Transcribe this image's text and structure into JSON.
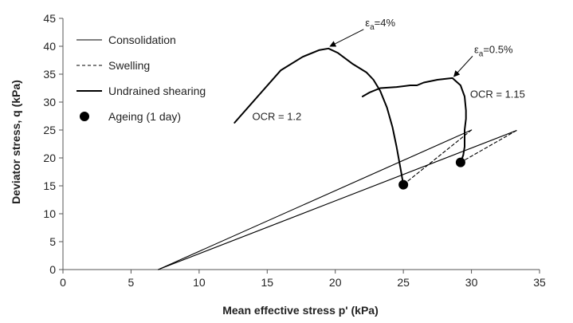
{
  "chart_data": {
    "type": "line",
    "xlabel": "Mean effective stress p' (kPa)",
    "ylabel": "Deviator stress, q (kPa)",
    "xlim": [
      0,
      35
    ],
    "ylim": [
      0,
      45
    ],
    "xticks": [
      0,
      5,
      10,
      15,
      20,
      25,
      30,
      35
    ],
    "yticks": [
      0,
      5,
      10,
      15,
      20,
      25,
      30,
      35,
      40,
      45
    ],
    "grid": false,
    "legend_position": "top-left",
    "legend": [
      {
        "label": "Consolidation",
        "style": "solid-thin"
      },
      {
        "label": "Swelling",
        "style": "dashed"
      },
      {
        "label": "Undrained shearing",
        "style": "solid-thick"
      },
      {
        "label": "Ageing (1 day)",
        "style": "marker"
      }
    ],
    "series": [
      {
        "name": "Consolidation 1",
        "style": "solid-thin",
        "x": [
          7.0,
          30.0
        ],
        "y": [
          0,
          25.0
        ]
      },
      {
        "name": "Consolidation 2",
        "style": "solid-thin",
        "x": [
          7.0,
          33.3
        ],
        "y": [
          0,
          24.9
        ]
      },
      {
        "name": "Swelling 1",
        "style": "dashed",
        "x": [
          30.0,
          25.0
        ],
        "y": [
          25.0,
          15.2
        ]
      },
      {
        "name": "Swelling 2",
        "style": "dashed",
        "x": [
          33.3,
          29.2
        ],
        "y": [
          24.9,
          19.2
        ]
      },
      {
        "name": "Undrained shearing OCR 1.2",
        "style": "solid-thick",
        "x": [
          25.0,
          24.8,
          24.5,
          24.2,
          23.8,
          23.3,
          22.8,
          22.3,
          21.3,
          20.2,
          19.5,
          18.8,
          17.6,
          16.0,
          14.3,
          12.6
        ],
        "y": [
          15.2,
          18.0,
          22.0,
          25.5,
          29.0,
          32.0,
          34.0,
          35.3,
          36.8,
          38.8,
          39.6,
          39.3,
          38.1,
          35.7,
          31.0,
          26.3
        ]
      },
      {
        "name": "Undrained shearing OCR 1.15",
        "style": "solid-thick",
        "x": [
          29.2,
          29.4,
          29.5,
          29.5,
          29.6,
          29.6,
          29.5,
          29.2,
          28.6,
          27.5,
          26.5,
          26.0,
          25.5,
          24.5,
          23.3,
          22.5,
          22.0
        ],
        "y": [
          19.2,
          20.5,
          22.0,
          25.0,
          27.0,
          28.5,
          31.0,
          33.0,
          34.3,
          34.0,
          33.5,
          33.0,
          33.0,
          32.7,
          32.5,
          31.7,
          31.0
        ]
      }
    ],
    "markers": [
      {
        "label": "Ageing (1 day)",
        "x": 25.0,
        "y": 15.2
      },
      {
        "label": "Ageing (1 day)",
        "x": 29.2,
        "y": 19.2
      }
    ],
    "annotations": [
      {
        "id": "ea4",
        "prefix": "ε",
        "sub": "a",
        "rest": "=4%",
        "x": 22.2,
        "y": 43.6,
        "arrow_to": [
          19.5,
          39.7
        ]
      },
      {
        "id": "ea05",
        "prefix": "ε",
        "sub": "a",
        "rest": "=0.5%",
        "x": 30.2,
        "y": 38.8,
        "arrow_to": [
          28.6,
          34.3
        ]
      },
      {
        "id": "ocr12",
        "text": "OCR = 1.2",
        "x": 13.9,
        "y": 26.8
      },
      {
        "id": "ocr115",
        "text": "OCR = 1.15",
        "x": 29.9,
        "y": 30.8
      }
    ]
  }
}
